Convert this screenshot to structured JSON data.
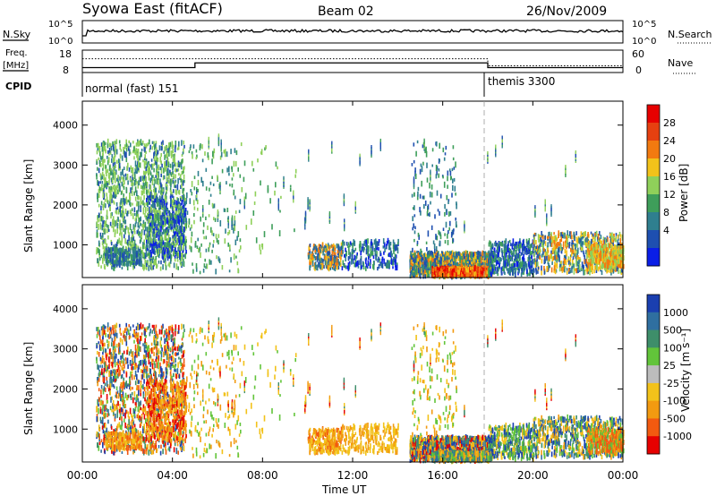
{
  "header": {
    "station": "Syowa East (fitACF)",
    "beam": "Beam 02",
    "date": "26/Nov/2009"
  },
  "top_panels": {
    "nsky_label": "N.Sky",
    "nsky_ticks": [
      "10^5",
      "10^0"
    ],
    "nsearch_label": "N.Search",
    "nsearch_ticks": [
      "10^5",
      "10^0"
    ],
    "freq_label_1": "Freq.",
    "freq_label_2": "[MHz]",
    "freq_ticks": [
      "18",
      "8"
    ],
    "nave_label": "Nave",
    "nave_ticks": [
      "60",
      "0"
    ],
    "cpid_label": "CPID",
    "cpid_modes": [
      {
        "label": "normal (fast) 151",
        "start_hour": 0
      },
      {
        "label": "themis 3300",
        "start_hour": 18
      }
    ],
    "freq_steps": [
      {
        "from": 0,
        "to": 5,
        "mhz": 10.2
      },
      {
        "from": 5,
        "to": 18,
        "mhz": 12.3
      },
      {
        "from": 18,
        "to": 24,
        "mhz": 10.2
      }
    ],
    "nave_steps": [
      {
        "from": 0,
        "to": 18,
        "value": 37
      },
      {
        "from": 18,
        "to": 24,
        "value": 18
      }
    ]
  },
  "chart_data": [
    {
      "type": "heatmap",
      "name": "power",
      "ylabel": "Slant Range [km]",
      "ylim": [
        180,
        4600
      ],
      "yticks": [
        "1000",
        "2000",
        "3000",
        "4000"
      ],
      "xlim": [
        0,
        24
      ],
      "colorbar_label": "Power [dB]",
      "colorbar_ticks": [
        "28",
        "24",
        "20",
        "16",
        "12",
        "8",
        "4"
      ],
      "colors": [
        "#0a1ee6",
        "#1e4fb0",
        "#2f7f8f",
        "#3e9e5a",
        "#8fd05a",
        "#f2c21a",
        "#f27a10",
        "#e64010",
        "#e60000"
      ]
    },
    {
      "type": "heatmap",
      "name": "velocity",
      "ylabel": "Slant Range [km]",
      "ylim": [
        180,
        4600
      ],
      "yticks": [
        "1000",
        "2000",
        "3000",
        "4000"
      ],
      "xlim": [
        0,
        24
      ],
      "xticks": [
        "00:00",
        "04:00",
        "08:00",
        "12:00",
        "16:00",
        "20:00",
        "00:00"
      ],
      "xlabel": "Time UT",
      "colorbar_label": "Velocity [m s⁻¹]",
      "colorbar_ticks": [
        "1000",
        "500",
        "100",
        "25",
        "-25",
        "-100",
        "-500",
        "-1000"
      ],
      "colors": [
        "#1a3fb0",
        "#2f6fa0",
        "#3e8e6a",
        "#62c43a",
        "#bcbcbc",
        "#f2c21a",
        "#f29a10",
        "#f25a10",
        "#e60000"
      ]
    }
  ]
}
